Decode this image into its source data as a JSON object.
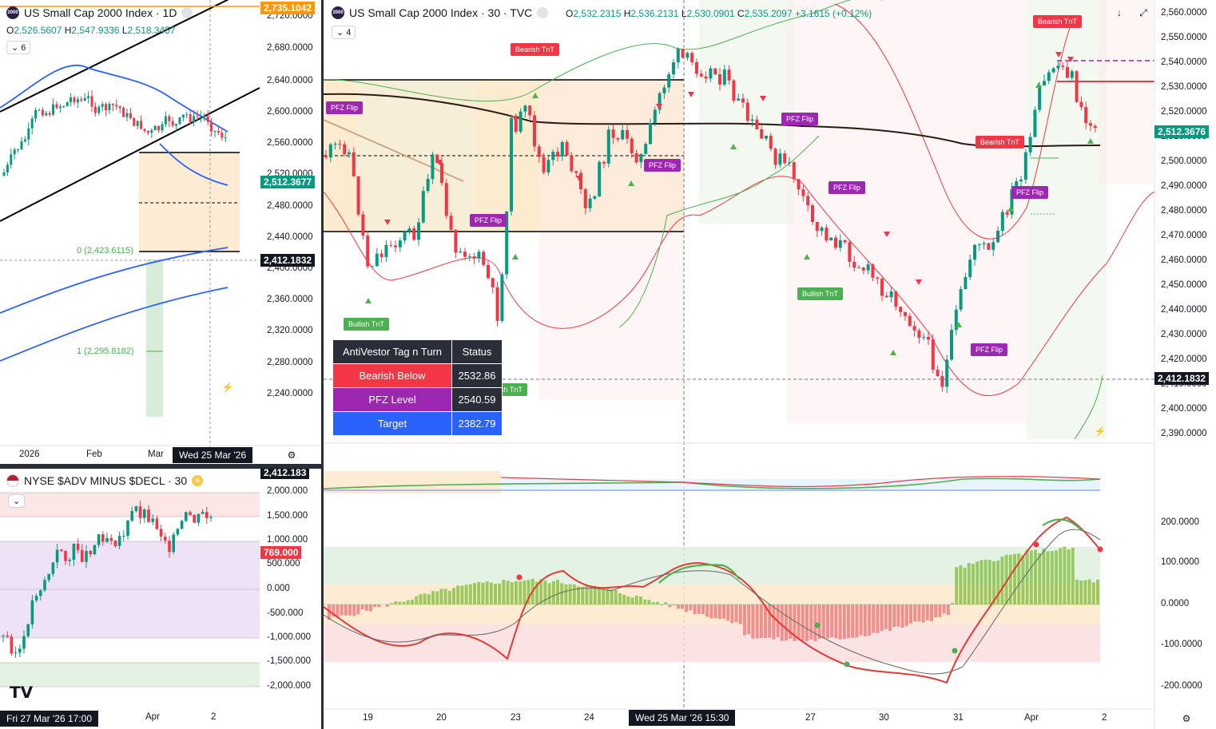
{
  "daily": {
    "title": "US Small Cap 2000 Index · 1D",
    "ohlc": {
      "o": "2,526.5607",
      "h": "2,547.9336",
      "l": "2,518.3457"
    },
    "indicator_count": "6",
    "yaxis": [
      "2,720.0000",
      "2,680.0000",
      "2,640.0000",
      "2,600.0000",
      "2,560.0000",
      "2,520.0000",
      "2,480.0000",
      "2,440.0000",
      "2,400.0000",
      "2,360.0000",
      "2,320.0000",
      "2,280.0000",
      "2,240.0000"
    ],
    "xaxis": [
      "2026",
      "Feb",
      "Mar"
    ],
    "crosshair_date": "Wed 25 Mar '26",
    "tag_top": "2,735.1042",
    "tag_price": "2,512.3677",
    "tag_cross": "2,412.1832",
    "fib0": "0 (2,423.6115)",
    "fib1": "1 (2,295.8182)"
  },
  "adv": {
    "title": "NYSE $ADV MINUS $DECL · 30",
    "yaxis": [
      "2,000.000",
      "1,500.000",
      "1,000.000",
      "500.000",
      "0.000",
      "-500.000",
      "-1,000.000",
      "-1,500.000",
      "-2,000.000"
    ],
    "xaxis": [
      "Apr",
      "2"
    ],
    "crosshair_date": "Fri 27 Mar '26   17:00",
    "tag_top": "2,412.183",
    "tag_value": "769.000"
  },
  "main": {
    "title": "US Small Cap 2000 Index · 30 · TVC",
    "ohlc": {
      "o": "2,532.2315",
      "h": "2,536.2131",
      "l": "2,530.0901",
      "c": "2,535.2097",
      "chg": "+3.1615 (+0.12%)"
    },
    "indicator_count": "4",
    "yaxis": [
      "2,560.0000",
      "2,550.0000",
      "2,540.0000",
      "2,530.0000",
      "2,520.0000",
      "2,510.0000",
      "2,500.0000",
      "2,490.0000",
      "2,480.0000",
      "2,470.0000",
      "2,460.0000",
      "2,450.0000",
      "2,440.0000",
      "2,430.0000",
      "2,420.0000",
      "2,410.0000",
      "2,400.0000",
      "2,390.0000"
    ],
    "osc_yaxis": [
      "200.0000",
      "100.0000",
      "0.0000",
      "-100.0000",
      "-200.0000"
    ],
    "xaxis": [
      "19",
      "20",
      "23",
      "24",
      "27",
      "30",
      "31",
      "Apr",
      "2"
    ],
    "crosshair_date": "Wed 25 Mar '26   15:30",
    "tag_price": "2,512.3676",
    "tag_cross": "2,412.1832",
    "signals": {
      "bearish_tnt": "Bearish TnT",
      "bullish_tnt": "Bullish TnT",
      "pfz_flip": "PFZ Flip",
      "partial": "sh TnT"
    },
    "table": {
      "header": [
        "AntiVestor Tag n Turn",
        "Status"
      ],
      "rows": [
        {
          "label": "Bearish Below",
          "value": "2532.86",
          "color": "#f23645"
        },
        {
          "label": "PFZ Level",
          "value": "2540.59",
          "color": "#9c27b0"
        },
        {
          "label": "Target",
          "value": "2382.79",
          "color": "#2962ff"
        }
      ]
    }
  },
  "colors": {
    "up": "#089981",
    "down": "#f23645",
    "pfz": "#9c27b0",
    "blue": "#2962ff",
    "zone": "#fde7c8"
  }
}
